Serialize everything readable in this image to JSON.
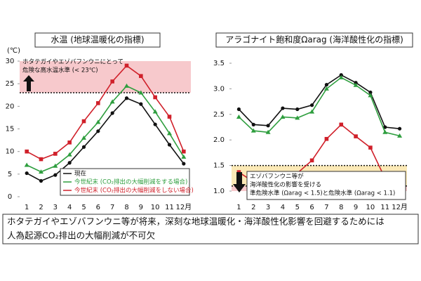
{
  "chart_data": [
    {
      "type": "line",
      "title": "水温 (地球温暖化の指標)",
      "ylabel": "(℃)",
      "categories": [
        "1",
        "2",
        "3",
        "4",
        "5",
        "6",
        "7",
        "8",
        "9",
        "10",
        "11",
        "12月"
      ],
      "series": [
        {
          "name": "現在",
          "color": "#111111",
          "values": [
            5.2,
            3.5,
            4.8,
            7.5,
            11,
            14.5,
            18.5,
            21.8,
            20.5,
            16,
            11.5,
            7.3
          ]
        },
        {
          "name": "今世紀末 (CO₂排出の大幅削減をする場合)",
          "color": "#2e9e3e",
          "values": [
            7,
            5.5,
            6.8,
            9.3,
            13,
            16.5,
            21,
            24.5,
            23,
            18.8,
            14,
            8.8
          ]
        },
        {
          "name": "今世紀末 (CO₂排出の大幅削減をしない場合)",
          "color": "#d0202a",
          "values": [
            10,
            8.3,
            9.5,
            12,
            16.7,
            20.7,
            25.5,
            29,
            26.7,
            22,
            17.7,
            10
          ]
        }
      ],
      "ylim": [
        0,
        30
      ],
      "yticks": [
        0,
        5,
        10,
        15,
        20,
        25,
        30
      ],
      "thresholds": [
        23
      ],
      "annotations": [
        "ホタテガイやエゾバフンウニにとって",
        "危険な高水温水準 (< 23℃)"
      ]
    },
    {
      "type": "line",
      "title": "アラゴナイト飽和度Ωarag (海洋酸性化の指標)",
      "categories": [
        "1",
        "2",
        "3",
        "4",
        "5",
        "6",
        "7",
        "8",
        "9",
        "10",
        "11",
        "12月"
      ],
      "series": [
        {
          "color": "#111111",
          "values": [
            2.6,
            2.3,
            2.28,
            2.62,
            2.6,
            2.68,
            3.08,
            3.27,
            3.12,
            2.93,
            2.25,
            2.22
          ]
        },
        {
          "color": "#2e9e3e",
          "values": [
            2.45,
            2.18,
            2.15,
            2.45,
            2.43,
            2.55,
            3.0,
            3.22,
            3.07,
            2.87,
            2.15,
            2.08
          ]
        },
        {
          "color": "#d0202a",
          "values": [
            1.37,
            1.18,
            1.15,
            1.28,
            1.35,
            1.6,
            2.02,
            2.3,
            2.07,
            1.85,
            1.25,
            1.15
          ]
        }
      ],
      "ylim": [
        1,
        3.5
      ],
      "yticks": [
        {
          "value": 1,
          "label": "1.0"
        },
        1.5,
        {
          "value": 2,
          "label": "2.0"
        },
        2.5,
        {
          "value": 3,
          "label": "3.0"
        },
        3.5
      ],
      "thresholds": [
        1.5,
        1.1
      ],
      "annotations": [
        "エゾバフンウニ等が",
        "海洋酸性化の影響を受ける",
        "準危険水準 (Ωarag < 1.5)と危険水準 (Ωarag < 1.1)"
      ]
    }
  ],
  "footer": [
    "ホタテガイやエゾバフンウニ等が将来，深刻な地球温暖化・海洋酸性化影響を回避するためには",
    "人為起源CO₂排出の大幅削減が不可欠"
  ]
}
